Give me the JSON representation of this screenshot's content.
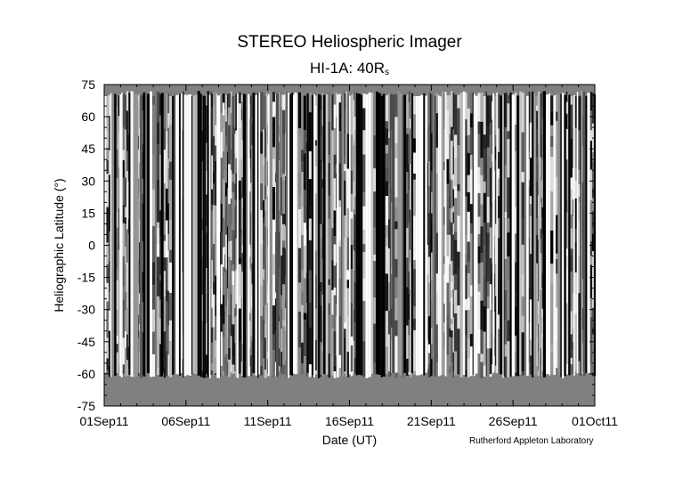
{
  "chart_data": {
    "type": "heatmap",
    "title": "STEREO Heliospheric Imager",
    "subtitle_main": "HI-1A: 40R",
    "subtitle_sub": "s",
    "xlabel": "Date (UT)",
    "ylabel": "Heliographic Latitude (°)",
    "x_ticks": [
      "01Sep11",
      "06Sep11",
      "11Sep11",
      "16Sep11",
      "21Sep11",
      "26Sep11",
      "01Oct11"
    ],
    "y_ticks": [
      75,
      60,
      45,
      30,
      15,
      0,
      -15,
      -30,
      -45,
      -60,
      -75
    ],
    "xlim": [
      "01Sep11",
      "01Oct11"
    ],
    "ylim": [
      -75,
      75
    ],
    "data_latitude_range": [
      -62,
      72
    ],
    "no_data_color": "#808080",
    "colormap": "grayscale",
    "credit": "Rutherford Appleton Laboratory"
  }
}
